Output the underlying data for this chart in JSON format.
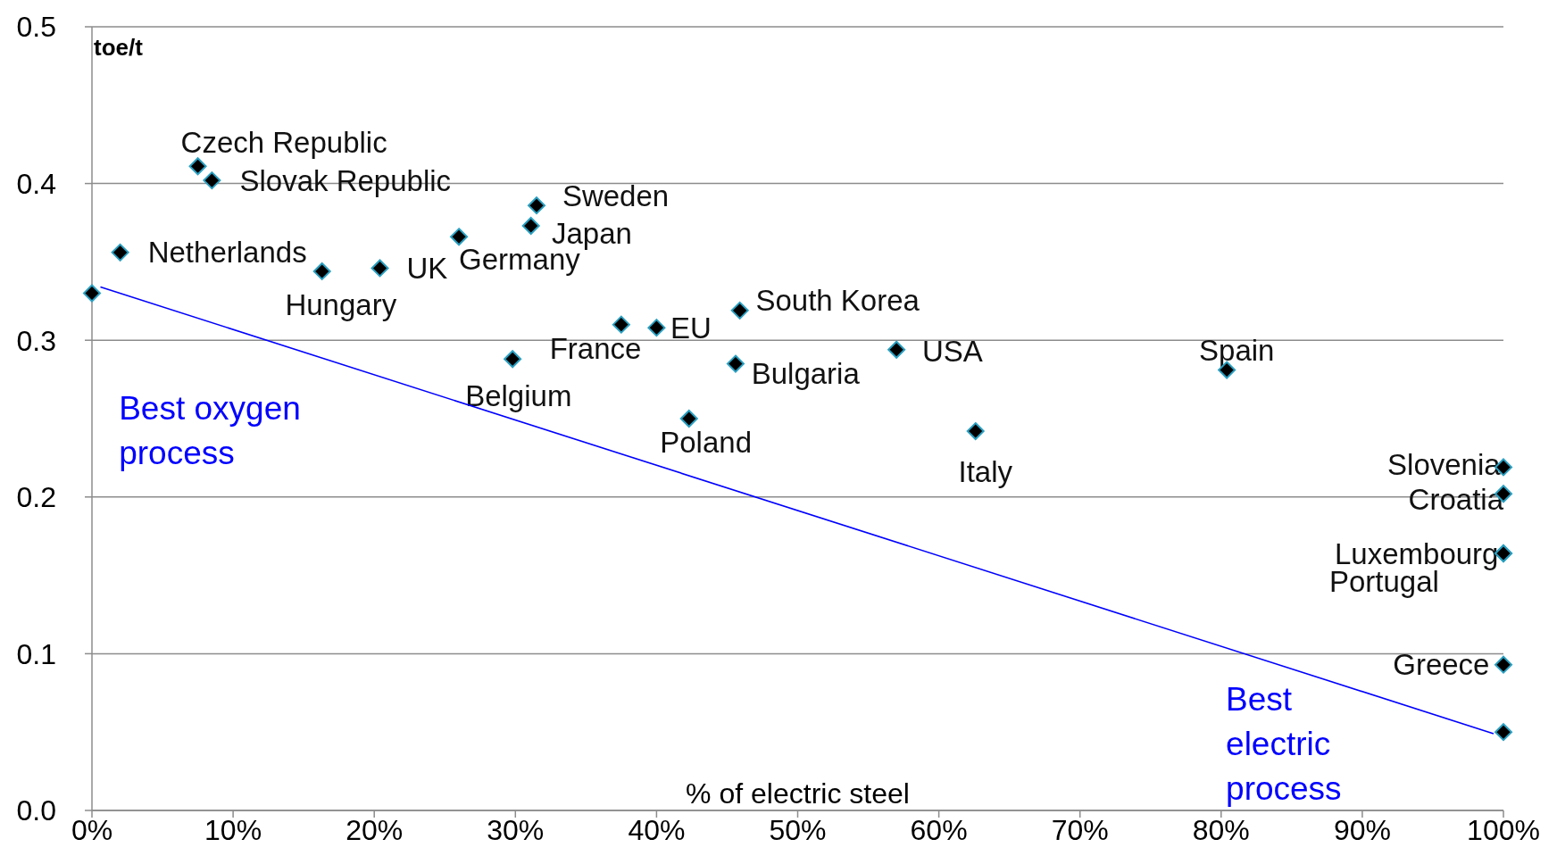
{
  "chart_data": {
    "type": "scatter",
    "xlabel": "% of electric steel",
    "ylabel": "toe/t",
    "xlim": [
      0,
      100
    ],
    "xticks": [
      {
        "value": 0,
        "label": "0%"
      },
      {
        "value": 10,
        "label": "10%"
      },
      {
        "value": 20,
        "label": "20%"
      },
      {
        "value": 30,
        "label": "30%"
      },
      {
        "value": 40,
        "label": "40%"
      },
      {
        "value": 50,
        "label": "50%"
      },
      {
        "value": 60,
        "label": "60%"
      },
      {
        "value": 70,
        "label": "70%"
      },
      {
        "value": 80,
        "label": "80%"
      },
      {
        "value": 90,
        "label": "90%"
      },
      {
        "value": 100,
        "label": "100%"
      }
    ],
    "ylim": [
      0,
      0.5
    ],
    "yticks": [
      {
        "value": 0,
        "label": "0.0"
      },
      0.1,
      0.2,
      0.3,
      0.4,
      0.5
    ],
    "grid": "y",
    "series": [
      {
        "marker": "diamond",
        "color": "#000000",
        "x": [
          0,
          2.0,
          7.5,
          8.5,
          16.3,
          20.4,
          26.0,
          31.1,
          31.5,
          29.8,
          37.5,
          40.0,
          42.3,
          45.6,
          45.9,
          57.0,
          62.6,
          80.4,
          100,
          100,
          100,
          100,
          100,
          100
        ],
        "values": [
          0.33,
          0.356,
          0.411,
          0.402,
          0.344,
          0.346,
          0.366,
          0.373,
          0.386,
          0.288,
          0.31,
          0.308,
          0.25,
          0.285,
          0.319,
          0.294,
          0.242,
          0.281,
          0.219,
          0.202,
          0.164,
          0.164,
          0.093,
          0.05
        ]
      },
      {
        "type": "line",
        "marker": "none",
        "color": "#0000ff",
        "x": [
          0.6,
          99.3
        ],
        "values": [
          0.334,
          0.049
        ],
        "line_style": "solid"
      }
    ],
    "annotations": [
      {
        "text": "Netherlands",
        "x": 2.0,
        "y": 0.356
      },
      {
        "text": "Czech Republic",
        "x": 7.5,
        "y": 0.411
      },
      {
        "text": "Slovak Republic",
        "x": 8.5,
        "y": 0.402
      },
      {
        "text": "Hungary",
        "x": 16.3,
        "y": 0.344
      },
      {
        "text": "UK",
        "x": 20.4,
        "y": 0.346
      },
      {
        "text": "Germany",
        "x": 26.0,
        "y": 0.366
      },
      {
        "text": "Japan",
        "x": 31.1,
        "y": 0.373
      },
      {
        "text": "Sweden",
        "x": 31.5,
        "y": 0.386
      },
      {
        "text": "Belgium",
        "x": 29.8,
        "y": 0.288
      },
      {
        "text": "France",
        "x": 37.5,
        "y": 0.31
      },
      {
        "text": "EU",
        "x": 40.0,
        "y": 0.308
      },
      {
        "text": "Poland",
        "x": 42.3,
        "y": 0.25
      },
      {
        "text": "Bulgaria",
        "x": 45.6,
        "y": 0.285
      },
      {
        "text": "South Korea",
        "x": 45.9,
        "y": 0.319
      },
      {
        "text": "USA",
        "x": 57.0,
        "y": 0.294
      },
      {
        "text": "Italy",
        "x": 62.6,
        "y": 0.242
      },
      {
        "text": "Spain",
        "x": 80.4,
        "y": 0.281
      },
      {
        "text": "Slovenia",
        "x": 100,
        "y": 0.219
      },
      {
        "text": "Croatia",
        "x": 100,
        "y": 0.202
      },
      {
        "text": "Luxembourg",
        "x": 100,
        "y": 0.164
      },
      {
        "text": "Portugal",
        "x": 100,
        "y": 0.164
      },
      {
        "text": "Greece",
        "x": 100,
        "y": 0.093
      },
      "Best oxygen process",
      "Best electric process"
    ]
  }
}
